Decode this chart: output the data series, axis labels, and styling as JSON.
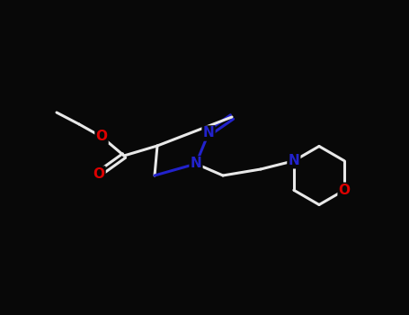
{
  "bg_color": "#080808",
  "bond_color": "#e8e8e8",
  "n_color": "#2222cc",
  "o_color": "#dd0000",
  "bond_width": 2.2,
  "figsize": [
    4.55,
    3.5
  ],
  "dpi": 100,
  "xlim": [
    0,
    9.1
  ],
  "ylim": [
    0,
    7.0
  ]
}
